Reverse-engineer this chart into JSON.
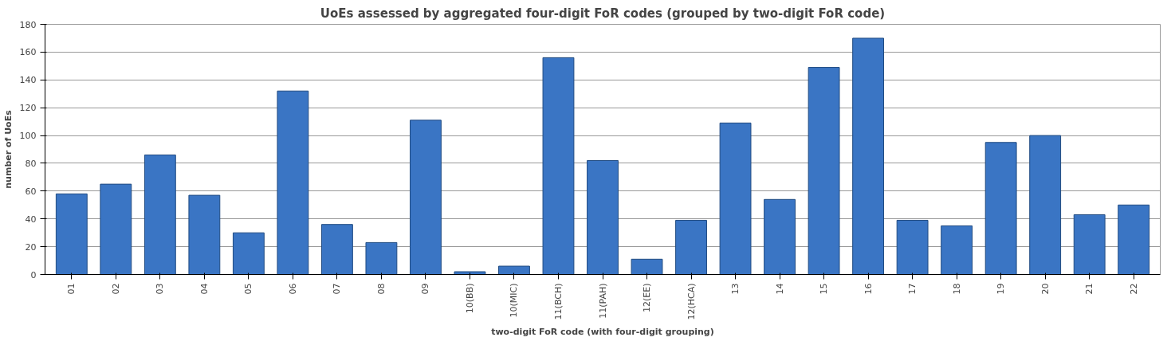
{
  "chart_data": {
    "type": "bar",
    "title": "UoEs assessed by aggregated four-digit FoR codes (grouped by two-digit FoR code)",
    "xlabel": "two-digit FoR code (with four-digit grouping)",
    "ylabel": "number of UoEs",
    "categories": [
      "01",
      "02",
      "03",
      "04",
      "05",
      "06",
      "07",
      "08",
      "09",
      "10(BB)",
      "10(MIC)",
      "11(BCH)",
      "11(PAH)",
      "12(EE)",
      "12(HCA)",
      "13",
      "14",
      "15",
      "16",
      "17",
      "18",
      "19",
      "20",
      "21",
      "22"
    ],
    "values": [
      58,
      65,
      86,
      57,
      30,
      132,
      36,
      23,
      111,
      2,
      6,
      156,
      82,
      11,
      39,
      109,
      54,
      149,
      170,
      39,
      35,
      95,
      100,
      43,
      50
    ],
    "color": "#3a75c4",
    "ylim": [
      0,
      180
    ],
    "yticks": [
      0,
      20,
      40,
      60,
      80,
      100,
      120,
      140,
      160,
      180
    ],
    "grid": "y"
  }
}
